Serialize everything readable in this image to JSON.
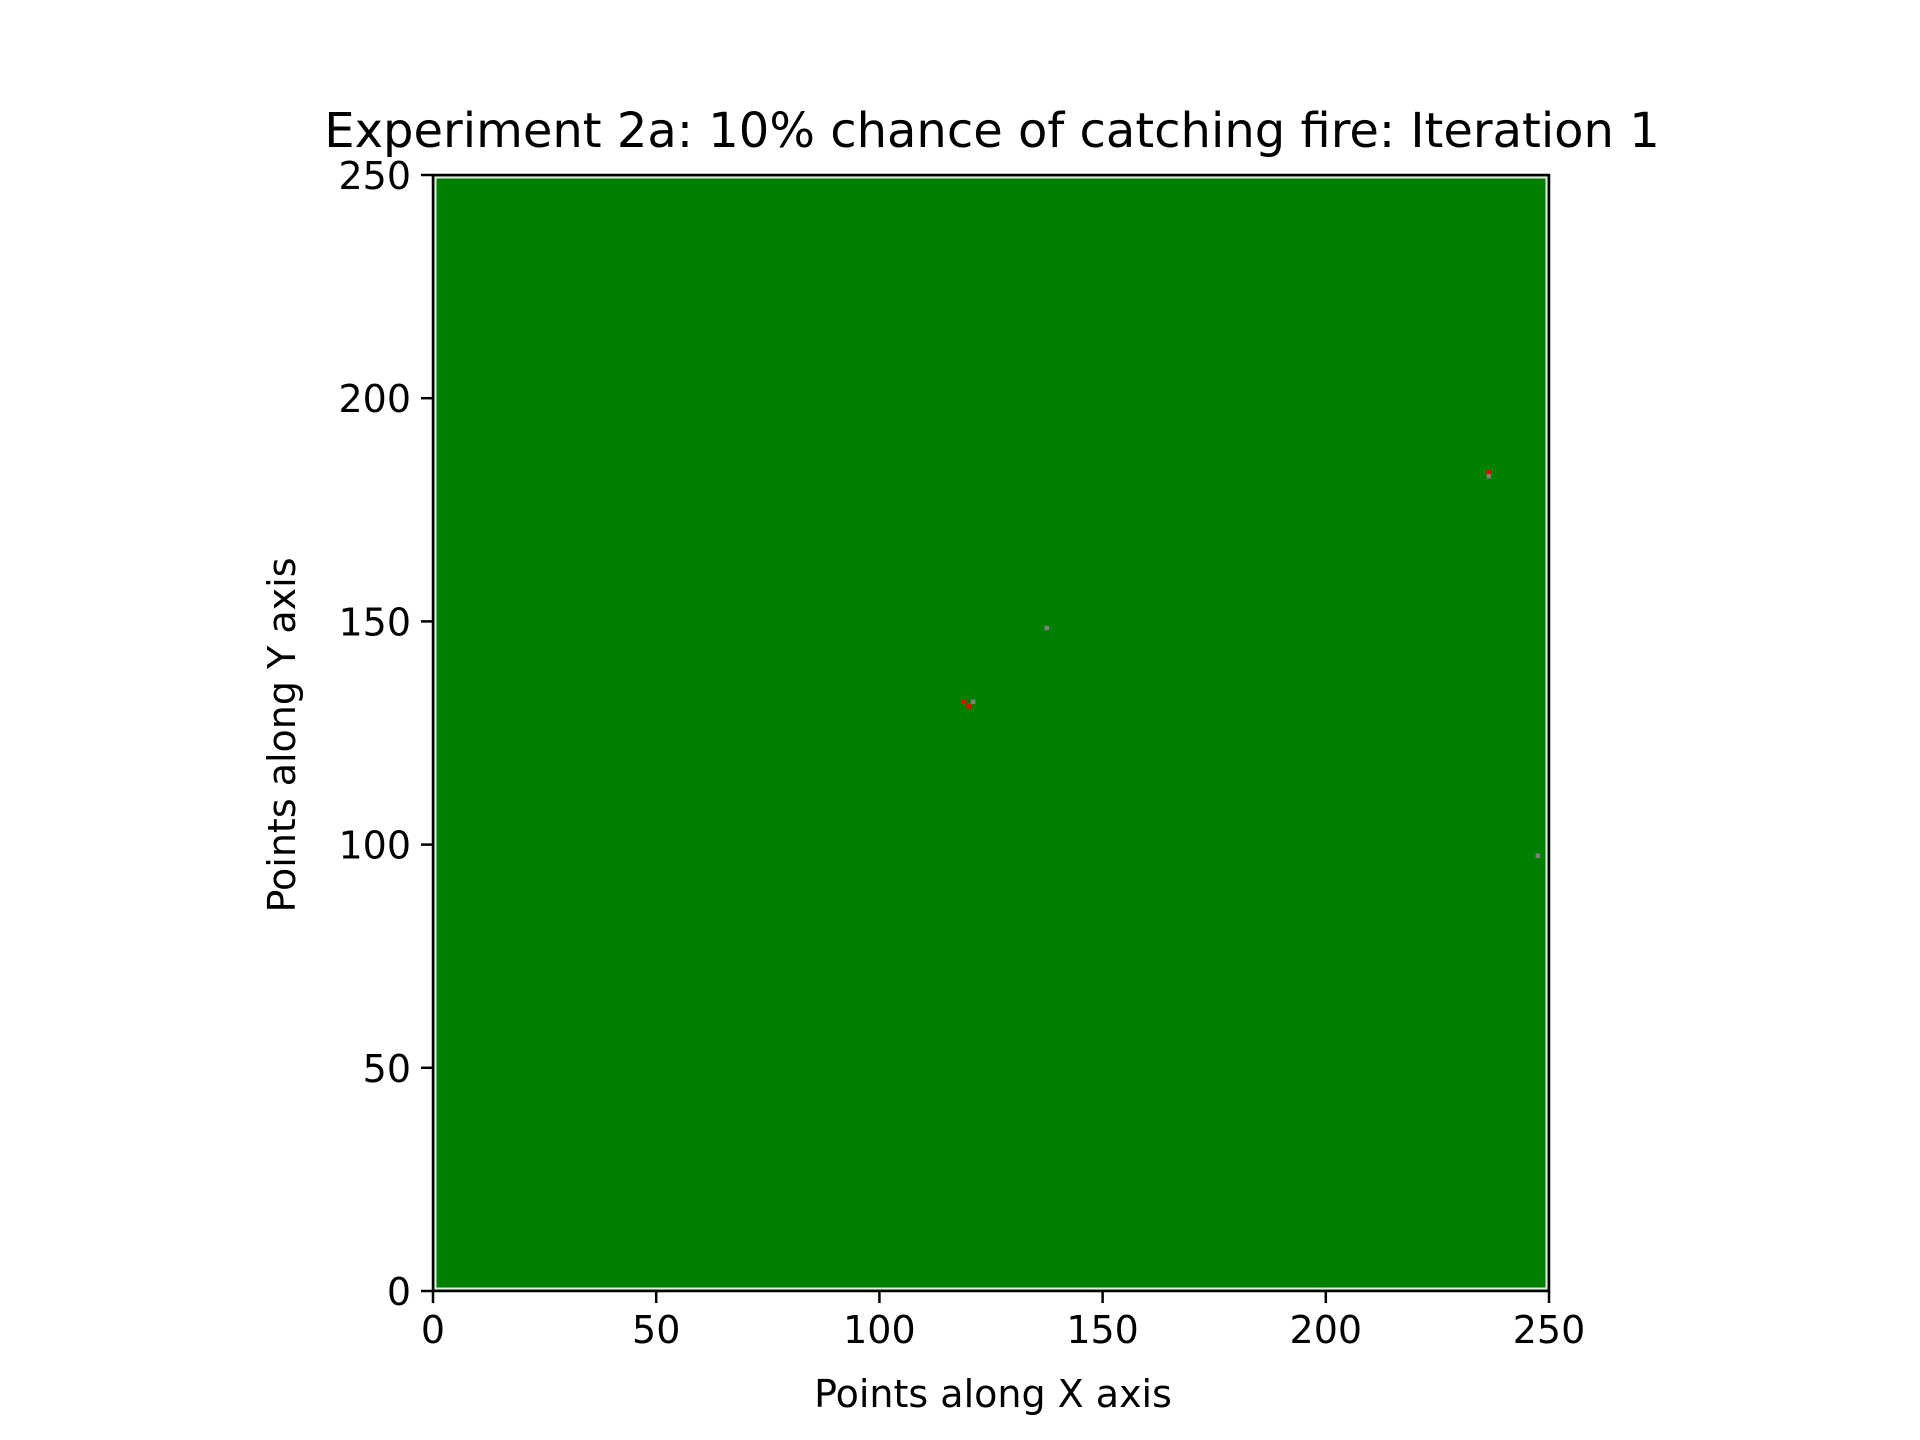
{
  "chart_data": {
    "type": "heatmap",
    "title": "Experiment 2a: 10% chance of catching fire: Iteration 1",
    "xlabel": "Points along X axis",
    "ylabel": "Points along Y axis",
    "xlim": [
      0,
      250
    ],
    "ylim": [
      0,
      250
    ],
    "xticks": [
      "0",
      "50",
      "100",
      "150",
      "200",
      "250"
    ],
    "yticks": [
      "0",
      "50",
      "100",
      "150",
      "200",
      "250"
    ],
    "grid": false,
    "background_state": "tree",
    "colors": {
      "tree": "#008000",
      "burning": "#ff0000",
      "burnt": "#808080",
      "border": "#e8e8e8"
    },
    "cells": [
      {
        "x": 119,
        "y": 132,
        "state": "burning"
      },
      {
        "x": 120,
        "y": 131,
        "state": "burning"
      },
      {
        "x": 121,
        "y": 132,
        "state": "burnt"
      },
      {
        "x": 137.5,
        "y": 148.5,
        "state": "burnt"
      },
      {
        "x": 236.5,
        "y": 183.5,
        "state": "burning"
      },
      {
        "x": 236.5,
        "y": 182.5,
        "state": "burnt"
      },
      {
        "x": 247.5,
        "y": 97.5,
        "state": "burnt"
      }
    ]
  }
}
